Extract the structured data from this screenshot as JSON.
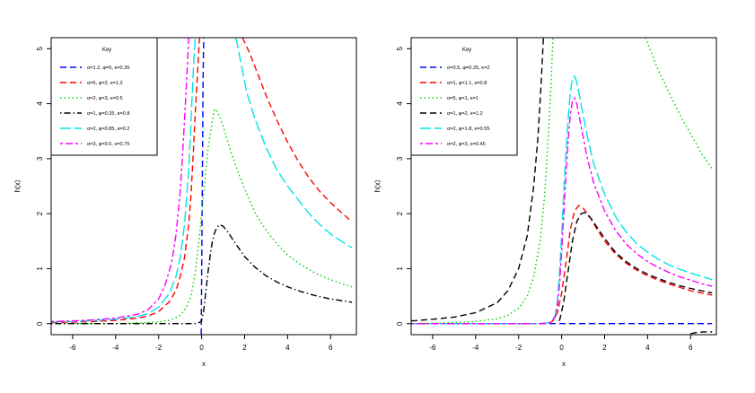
{
  "chart_data": [
    {
      "type": "line",
      "title": "",
      "xlabel": "x",
      "ylabel": "h(x)",
      "xlim": [
        -7,
        7.2
      ],
      "ylim": [
        -0.2,
        5.2
      ],
      "xticks": [
        -6,
        -4,
        -2,
        0,
        2,
        4,
        6
      ],
      "yticks": [
        0,
        1,
        2,
        3,
        4,
        5
      ],
      "grid": false,
      "legend": {
        "position": "top-left",
        "title": "Key"
      },
      "series": [
        {
          "name": "α=1.2, φ=5, κ=0.35",
          "color": "#0000ff",
          "dash": "dashed",
          "x": [
            -0.02,
            0.0,
            0.02,
            0.04,
            0.06,
            0.08,
            0.1
          ],
          "y": [
            -0.2,
            0.8,
            2.0,
            3.0,
            4.0,
            4.8,
            5.2
          ]
        },
        {
          "name": "α=5, φ=2, κ=1.2",
          "color": "#ff0000",
          "dash": "dashed",
          "x": [
            -7,
            -6,
            -5,
            -4,
            -3,
            -2.5,
            -2,
            -1.5,
            -1.2,
            -1.0,
            -0.8,
            -0.6,
            -0.5,
            -0.4,
            -0.3,
            -0.2,
            -0.1
          ],
          "y": [
            0.02,
            0.03,
            0.04,
            0.06,
            0.1,
            0.14,
            0.22,
            0.4,
            0.6,
            0.85,
            1.2,
            1.8,
            2.3,
            3.0,
            3.8,
            4.5,
            5.2
          ],
          "x2": [
            1.9,
            2.2,
            2.6,
            3.0,
            3.5,
            4.0,
            4.5,
            5.0,
            5.5,
            6.0,
            6.5,
            7.0
          ],
          "y2": [
            5.2,
            4.95,
            4.55,
            4.15,
            3.7,
            3.3,
            2.95,
            2.65,
            2.4,
            2.2,
            2.02,
            1.85
          ]
        },
        {
          "name": "α=2, φ=3, κ=0.5",
          "color": "#00cc00",
          "dash": "dotted",
          "x": [
            -7,
            -5,
            -4,
            -3,
            -2,
            -1.5,
            -1.0,
            -0.7,
            -0.5,
            -0.3,
            -0.1,
            0.1,
            0.3,
            0.5,
            0.6,
            0.75,
            1.0,
            1.3,
            1.6,
            2.0,
            2.5,
            3.0,
            3.5,
            4.0,
            4.5,
            5.0,
            5.5,
            6.0,
            6.5,
            7.0
          ],
          "y": [
            0.0,
            0.0,
            0.0,
            0.01,
            0.03,
            0.06,
            0.15,
            0.3,
            0.5,
            0.9,
            1.6,
            2.4,
            3.2,
            3.7,
            3.9,
            3.85,
            3.6,
            3.2,
            2.85,
            2.45,
            2.0,
            1.7,
            1.45,
            1.25,
            1.1,
            0.98,
            0.88,
            0.8,
            0.73,
            0.67
          ]
        },
        {
          "name": "α=1, φ=0.35, κ=0.8",
          "color": "#000000",
          "dash": "dotdash",
          "x": [
            -7,
            -3,
            -2,
            -1,
            -0.5,
            -0.2,
            0.0,
            0.1,
            0.2,
            0.3,
            0.4,
            0.5,
            0.6,
            0.7,
            0.85,
            1.0,
            1.2,
            1.5,
            2.0,
            2.5,
            3.0,
            3.5,
            4.0,
            4.5,
            5.0,
            5.5,
            6.0,
            6.5,
            7.0
          ],
          "y": [
            0.0,
            0.0,
            0.0,
            0.0,
            0.0,
            0.0,
            0.05,
            0.25,
            0.6,
            0.95,
            1.25,
            1.5,
            1.65,
            1.75,
            1.8,
            1.77,
            1.68,
            1.5,
            1.22,
            1.02,
            0.87,
            0.76,
            0.67,
            0.6,
            0.54,
            0.49,
            0.45,
            0.42,
            0.39
          ]
        },
        {
          "name": "α=2, φ=0.85, κ=0.2",
          "color": "#00e5e5",
          "dash": "longdash",
          "x": [
            -7,
            -6,
            -5,
            -4,
            -3,
            -2.5,
            -2,
            -1.5,
            -1.2,
            -1.0,
            -0.8,
            -0.6,
            -0.5,
            -0.4,
            -0.3
          ],
          "y": [
            0.03,
            0.04,
            0.06,
            0.08,
            0.13,
            0.18,
            0.3,
            0.55,
            0.85,
            1.2,
            1.8,
            2.8,
            3.6,
            4.5,
            5.2
          ],
          "x2": [
            1.6,
            1.8,
            2.1,
            2.5,
            3.0,
            3.5,
            4.0,
            4.5,
            5.0,
            5.5,
            6.0,
            6.5,
            7.0
          ],
          "y2": [
            5.2,
            4.8,
            4.2,
            3.7,
            3.2,
            2.8,
            2.5,
            2.25,
            2.0,
            1.8,
            1.63,
            1.5,
            1.38
          ]
        },
        {
          "name": "α=3, φ=0.5, κ=0.75",
          "color": "#ff00ff",
          "dash": "twodash",
          "x": [
            -7,
            -6,
            -5,
            -4,
            -3,
            -2.5,
            -2,
            -1.7,
            -1.4,
            -1.2,
            -1.0,
            -0.9,
            -0.8,
            -0.7,
            -0.6
          ],
          "y": [
            0.04,
            0.05,
            0.07,
            0.1,
            0.17,
            0.25,
            0.45,
            0.7,
            1.1,
            1.6,
            2.4,
            3.0,
            3.7,
            4.4,
            5.2
          ]
        }
      ]
    },
    {
      "type": "line",
      "title": "",
      "xlabel": "x",
      "ylabel": "h(x)",
      "xlim": [
        -7,
        7.2
      ],
      "ylim": [
        -0.2,
        5.2
      ],
      "xticks": [
        -6,
        -4,
        -2,
        0,
        2,
        4,
        6
      ],
      "yticks": [
        0,
        1,
        2,
        3,
        4,
        5
      ],
      "grid": false,
      "legend": {
        "position": "top-left",
        "title": "Key"
      },
      "series": [
        {
          "name": "α=0.5, φ=0.25, κ=2",
          "color": "#0000ff",
          "dash": "dashed",
          "x": [
            -7,
            7
          ],
          "y": [
            0.0,
            0.0
          ]
        },
        {
          "name": "α=1, φ=1.1, κ=0.8",
          "color": "#ff0000",
          "dash": "dashed",
          "x": [
            -7,
            -3,
            -1.0,
            -0.6,
            -0.4,
            -0.2,
            0.0,
            0.2,
            0.4,
            0.6,
            0.8,
            1.0,
            1.3,
            1.6,
            2.0,
            2.5,
            3.0,
            3.5,
            4.0,
            4.5,
            5.0,
            5.5,
            6.0,
            6.5,
            7.0
          ],
          "y": [
            0.0,
            0.0,
            0.0,
            0.01,
            0.05,
            0.2,
            0.55,
            1.1,
            1.7,
            2.05,
            2.15,
            2.1,
            1.95,
            1.75,
            1.5,
            1.27,
            1.1,
            0.97,
            0.87,
            0.79,
            0.72,
            0.66,
            0.6,
            0.56,
            0.52
          ]
        },
        {
          "name": "α=5, φ=1, κ=1",
          "color": "#00cc00",
          "dash": "dotted",
          "x": [
            -7,
            -6,
            -5,
            -4,
            -3,
            -2.5,
            -2,
            -1.6,
            -1.3,
            -1.0,
            -0.8,
            -0.6,
            -0.5,
            -0.4
          ],
          "y": [
            0.0,
            0.01,
            0.02,
            0.04,
            0.09,
            0.15,
            0.28,
            0.5,
            0.85,
            1.5,
            2.3,
            3.5,
            4.3,
            5.2
          ],
          "x2": [
            3.9,
            4.5,
            5.0,
            5.5,
            6.0,
            6.5,
            7.0
          ],
          "y2": [
            5.2,
            4.6,
            4.2,
            3.8,
            3.45,
            3.1,
            2.82
          ]
        },
        {
          "name": "α=1, φ=2, κ=1.2",
          "color": "#000000",
          "dash": "dashed",
          "x": [
            -7,
            -6,
            -5,
            -4,
            -3,
            -2.5,
            -2,
            -1.6,
            -1.3,
            -1.1,
            -0.95,
            -0.85
          ],
          "y": [
            0.05,
            0.08,
            0.12,
            0.2,
            0.38,
            0.6,
            1.0,
            1.6,
            2.5,
            3.4,
            4.4,
            5.2
          ],
          "x2": [
            -0.1,
            0.1,
            0.3,
            0.5,
            0.7,
            0.9,
            1.1,
            1.4,
            1.7,
            2.0,
            2.5,
            3.0,
            3.5,
            4.0,
            4.5,
            5.0,
            5.5,
            6.0,
            6.5,
            7.0
          ],
          "y2": [
            0.05,
            0.4,
            0.95,
            1.5,
            1.85,
            2.0,
            2.02,
            1.9,
            1.72,
            1.55,
            1.3,
            1.13,
            1.0,
            0.9,
            0.82,
            0.75,
            0.69,
            0.64,
            0.6,
            0.56
          ],
          "x3": [
            6.0,
            6.3,
            6.6,
            7.0
          ],
          "y3": [
            -0.18,
            -0.16,
            -0.15,
            -0.15
          ]
        },
        {
          "name": "α=2, φ=1.8, κ=0.55",
          "color": "#00e5e5",
          "dash": "longdash",
          "x": [
            -7,
            -3,
            -1.0,
            -0.5,
            -0.3,
            -0.2,
            -0.1,
            0.0,
            0.1,
            0.2,
            0.3,
            0.4,
            0.5,
            0.6,
            0.7,
            0.8,
            1.0,
            1.2,
            1.5,
            2.0,
            2.5,
            3.0,
            3.5,
            4.0,
            4.5,
            5.0,
            5.5,
            6.0,
            6.5,
            7.0
          ],
          "y": [
            0.0,
            0.0,
            0.0,
            0.02,
            0.15,
            0.4,
            0.9,
            1.6,
            2.4,
            3.1,
            3.7,
            4.2,
            4.45,
            4.5,
            4.4,
            4.2,
            3.8,
            3.4,
            2.9,
            2.35,
            1.95,
            1.67,
            1.45,
            1.3,
            1.17,
            1.07,
            0.99,
            0.92,
            0.86,
            0.8
          ]
        },
        {
          "name": "α=2, φ=3, κ=0.45",
          "color": "#ff00ff",
          "dash": "twodash",
          "x": [
            -7,
            -3,
            -1.0,
            -0.5,
            -0.3,
            -0.2,
            -0.1,
            0.0,
            0.1,
            0.2,
            0.3,
            0.4,
            0.5,
            0.6,
            0.7,
            0.8,
            1.0,
            1.2,
            1.5,
            2.0,
            2.5,
            3.0,
            3.5,
            4.0,
            4.5,
            5.0,
            5.5,
            6.0,
            6.5,
            7.0
          ],
          "y": [
            0.0,
            0.0,
            0.0,
            0.02,
            0.12,
            0.3,
            0.7,
            1.3,
            2.0,
            2.7,
            3.3,
            3.8,
            4.05,
            4.1,
            4.0,
            3.8,
            3.4,
            3.0,
            2.55,
            2.05,
            1.7,
            1.45,
            1.27,
            1.13,
            1.02,
            0.93,
            0.85,
            0.79,
            0.73,
            0.68
          ]
        }
      ]
    }
  ]
}
